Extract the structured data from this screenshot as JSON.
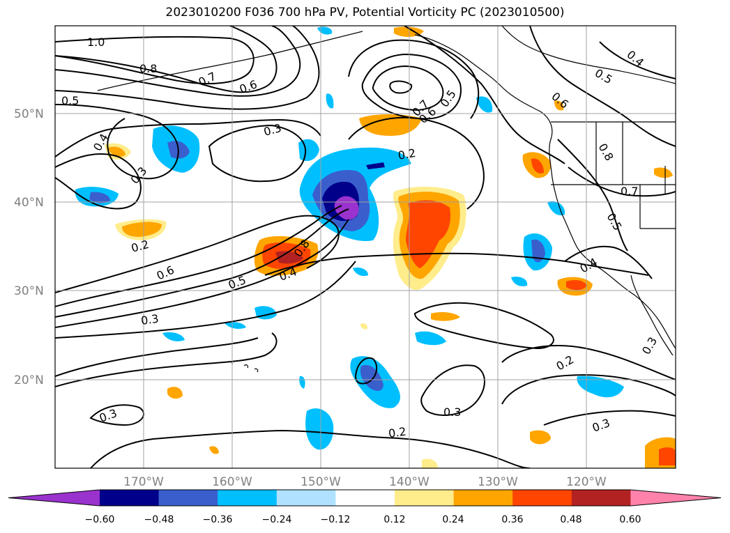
{
  "title": "2023010200 F036 700 hPa PV, Potential Vorticity PC (2023010500)",
  "map": {
    "lon_range": [
      -180,
      -110
    ],
    "lat_range": [
      10,
      60
    ],
    "lat_labels": [
      "50°N",
      "40°N",
      "30°N",
      "20°N"
    ],
    "lon_labels": [
      "170°W",
      "160°W",
      "150°W",
      "140°W",
      "130°W",
      "120°W"
    ],
    "contour_labels": [
      "1.0",
      "0.8",
      "0.7",
      "0.6",
      "0.5",
      "0.4",
      "0.3",
      "0.3",
      "0.2",
      "0.6",
      "0.5",
      "0.4",
      "0.3",
      "0.2",
      "0.3",
      "0.3",
      "0.2",
      "0.7",
      "0.6",
      "0.5",
      "0.4",
      "0.6",
      "0.5",
      "0.8",
      "0.7",
      "0.5",
      "0.4",
      "0.2",
      "0.3",
      "0.3",
      "0.8"
    ]
  },
  "colorbar": {
    "ticks": [
      "−0.60",
      "−0.48",
      "−0.36",
      "−0.24",
      "−0.12",
      "0.12",
      "0.24",
      "0.36",
      "0.48",
      "0.60"
    ],
    "colors": [
      "#9a32cd",
      "#00008b",
      "#3a5fcd",
      "#00bfff",
      "#b0e2ff",
      "#ffffff",
      "#ffec8b",
      "#ffa500",
      "#ff4500",
      "#b22222",
      "#ff82ab"
    ]
  }
}
